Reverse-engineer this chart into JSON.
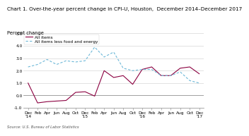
{
  "title": "Chart 1. Over-the-year percent change in CPI-U, Houston,  December 2014–December 2017",
  "ylabel": "Percent change",
  "source": "Source: U.S. Bureau of Labor Statistics",
  "ylim": [
    -1.0,
    5.0
  ],
  "yticks": [
    -1.0,
    0.0,
    1.0,
    2.0,
    3.0,
    4.0,
    5.0
  ],
  "x_labels": [
    "Dec\n'14",
    "Feb",
    "Apr",
    "Jun",
    "Aug",
    "Oct",
    "Dec\n'15",
    "Feb",
    "Apr",
    "Jun",
    "Aug",
    "Oct",
    "Dec\n'16",
    "Feb",
    "Apr",
    "Jun",
    "Aug",
    "Oct",
    "Dec\n'17"
  ],
  "all_items": [
    1.0,
    -0.6,
    -0.5,
    -0.45,
    -0.4,
    0.25,
    0.3,
    -0.05,
    2.0,
    1.45,
    1.6,
    0.9,
    2.1,
    2.3,
    1.6,
    1.6,
    2.2,
    2.3,
    1.75
  ],
  "all_items_less": [
    2.3,
    2.5,
    2.9,
    2.5,
    2.8,
    2.7,
    2.8,
    3.9,
    3.1,
    3.5,
    2.2,
    2.0,
    2.1,
    2.1,
    1.6,
    1.6,
    1.9,
    1.2,
    1.0
  ],
  "all_items_color": "#8b0040",
  "all_items_less_color": "#6db8d8",
  "legend_all_items": "All items",
  "legend_all_items_less": "All items less food and energy",
  "title_fontsize": 5.2,
  "ylabel_fontsize": 4.8,
  "tick_fontsize": 4.2,
  "legend_fontsize": 4.2,
  "source_fontsize": 3.8
}
